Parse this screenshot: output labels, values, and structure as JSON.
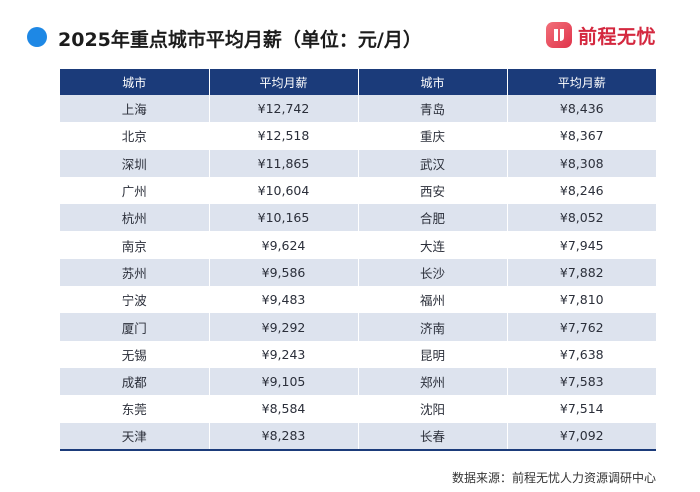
{
  "header": {
    "title": "2025年重点城市平均月薪（单位：元/月）",
    "logo_text": "前程无忧",
    "accent_color": "#1e88e5",
    "logo_color": "#d4283f"
  },
  "table": {
    "header_color": "#1b3b7a",
    "stripe_color": "#dde3ee",
    "columns": [
      "城市",
      "平均月薪",
      "城市",
      "平均月薪"
    ],
    "rows": [
      [
        "上海",
        "¥12,742",
        "青岛",
        "¥8,436"
      ],
      [
        "北京",
        "¥12,518",
        "重庆",
        "¥8,367"
      ],
      [
        "深圳",
        "¥11,865",
        "武汉",
        "¥8,308"
      ],
      [
        "广州",
        "¥10,604",
        "西安",
        "¥8,246"
      ],
      [
        "杭州",
        "¥10,165",
        "合肥",
        "¥8,052"
      ],
      [
        "南京",
        "¥9,624",
        "大连",
        "¥7,945"
      ],
      [
        "苏州",
        "¥9,586",
        "长沙",
        "¥7,882"
      ],
      [
        "宁波",
        "¥9,483",
        "福州",
        "¥7,810"
      ],
      [
        "厦门",
        "¥9,292",
        "济南",
        "¥7,762"
      ],
      [
        "无锡",
        "¥9,243",
        "昆明",
        "¥7,638"
      ],
      [
        "成都",
        "¥9,105",
        "郑州",
        "¥7,583"
      ],
      [
        "东莞",
        "¥8,584",
        "沈阳",
        "¥7,514"
      ],
      [
        "天津",
        "¥8,283",
        "长春",
        "¥7,092"
      ]
    ]
  },
  "footer": {
    "source": "数据来源：前程无忧人力资源调研中心"
  }
}
